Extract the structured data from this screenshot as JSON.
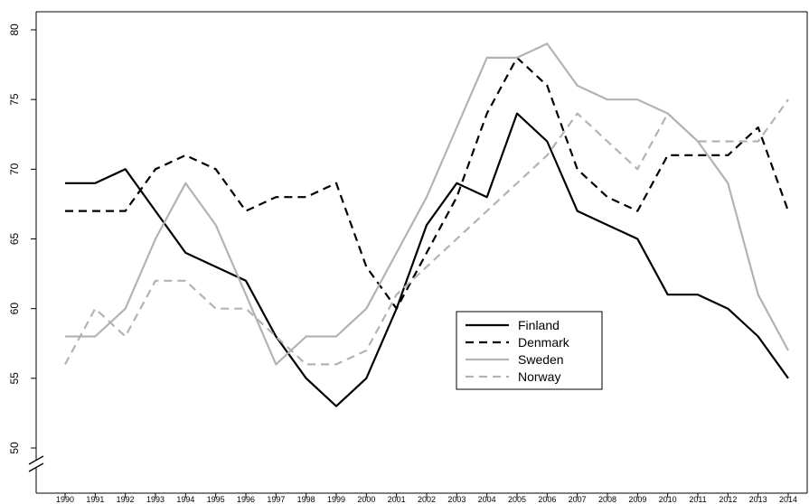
{
  "chart_data": {
    "type": "line",
    "title": "",
    "xlabel": "",
    "ylabel": "",
    "x": [
      1990,
      1991,
      1992,
      1993,
      1994,
      1995,
      1996,
      1997,
      1998,
      1999,
      2000,
      2001,
      2002,
      2003,
      2004,
      2005,
      2006,
      2007,
      2008,
      2009,
      2010,
      2011,
      2012,
      2013,
      2014
    ],
    "x_tick_labels": [
      "1990",
      "1991",
      "1992",
      "1993",
      "1994",
      "1995",
      "1996",
      "1997",
      "1998",
      "1999",
      "2000",
      "2001",
      "2002",
      "2003",
      "2004",
      "2005",
      "2006",
      "2007",
      "2008",
      "2009",
      "2010",
      "2011",
      "2012",
      "2013",
      "2014"
    ],
    "y_ticks": [
      50,
      55,
      60,
      65,
      70,
      75,
      80
    ],
    "y_tick_labels": [
      "50",
      "55",
      "60",
      "65",
      "70",
      "75",
      "80"
    ],
    "ylim": [
      50,
      81
    ],
    "y_axis_break": true,
    "grid": false,
    "legend_position": "center",
    "series": [
      {
        "name": "Finland",
        "color": "#000000",
        "dashed": false,
        "values": [
          69,
          69,
          70,
          67,
          64,
          63,
          62,
          58,
          55,
          53,
          55,
          60,
          66,
          69,
          68,
          74,
          72,
          67,
          66,
          65,
          61,
          61,
          60,
          58,
          55
        ]
      },
      {
        "name": "Denmark",
        "color": "#000000",
        "dashed": true,
        "values": [
          67,
          67,
          67,
          70,
          71,
          70,
          67,
          68,
          68,
          69,
          63,
          60,
          64,
          68,
          74,
          78,
          76,
          70,
          68,
          67,
          71,
          71,
          71,
          73,
          67
        ]
      },
      {
        "name": "Sweden",
        "color": "#b3b3b3",
        "dashed": false,
        "values": [
          58,
          58,
          60,
          65,
          69,
          66,
          61,
          56,
          58,
          58,
          60,
          64,
          68,
          73,
          78,
          78,
          79,
          76,
          75,
          75,
          74,
          72,
          69,
          61,
          57
        ]
      },
      {
        "name": "Norway",
        "color": "#b3b3b3",
        "dashed": true,
        "values": [
          56,
          60,
          58,
          62,
          62,
          60,
          60,
          58,
          56,
          56,
          57,
          61,
          63,
          65,
          67,
          69,
          71,
          74,
          72,
          70,
          74,
          72,
          72,
          72,
          75
        ]
      }
    ]
  }
}
